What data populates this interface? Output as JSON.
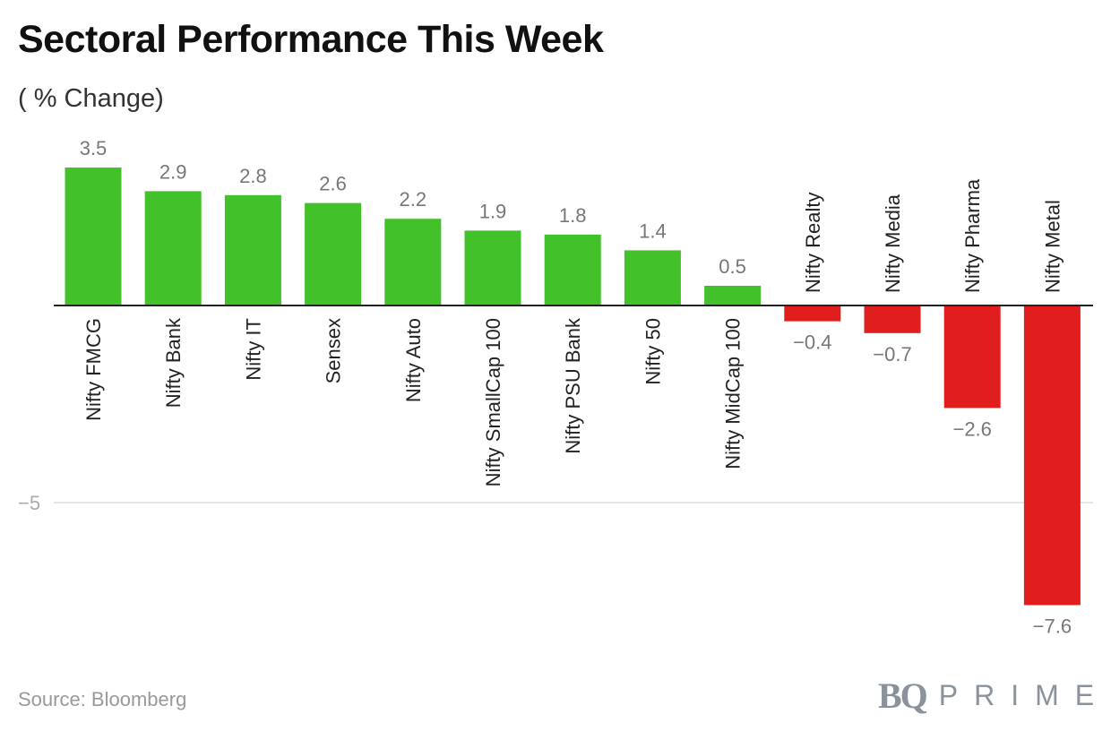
{
  "title": "Sectoral Performance This Week",
  "subtitle": "( % Change)",
  "source": "Source: Bloomberg",
  "logo": {
    "mark": "BQ",
    "word": "PRIME"
  },
  "colors": {
    "positive": "#43c12a",
    "negative": "#e01e1e",
    "axis": "#222222",
    "grid": "#dddddd",
    "label": "#777777"
  },
  "chart_data": {
    "type": "bar",
    "title": "Sectoral Performance This Week",
    "subtitle": "( % Change)",
    "categories": [
      "Nifty FMCG",
      "Nifty Bank",
      "Nifty IT",
      "Sensex",
      "Nifty Auto",
      "Nifty SmallCap 100",
      "Nifty PSU Bank",
      "Nifty 50",
      "Nifty MidCap 100",
      "Nifty Realty",
      "Nifty Media",
      "Nifty Pharma",
      "Nifty Metal"
    ],
    "values": [
      3.5,
      2.9,
      2.8,
      2.6,
      2.2,
      1.9,
      1.8,
      1.4,
      0.5,
      -0.4,
      -0.7,
      -2.6,
      -7.6
    ],
    "value_labels": [
      "3.5",
      "2.9",
      "2.8",
      "2.6",
      "2.2",
      "1.9",
      "1.8",
      "1.4",
      "0.5",
      "−0.4",
      "−0.7",
      "−2.6",
      "−7.6"
    ],
    "yticks": [
      {
        "value": -5,
        "label": "−5"
      }
    ],
    "ylim": [
      -8.2,
      4.5
    ],
    "grid": true,
    "legend": "none"
  }
}
